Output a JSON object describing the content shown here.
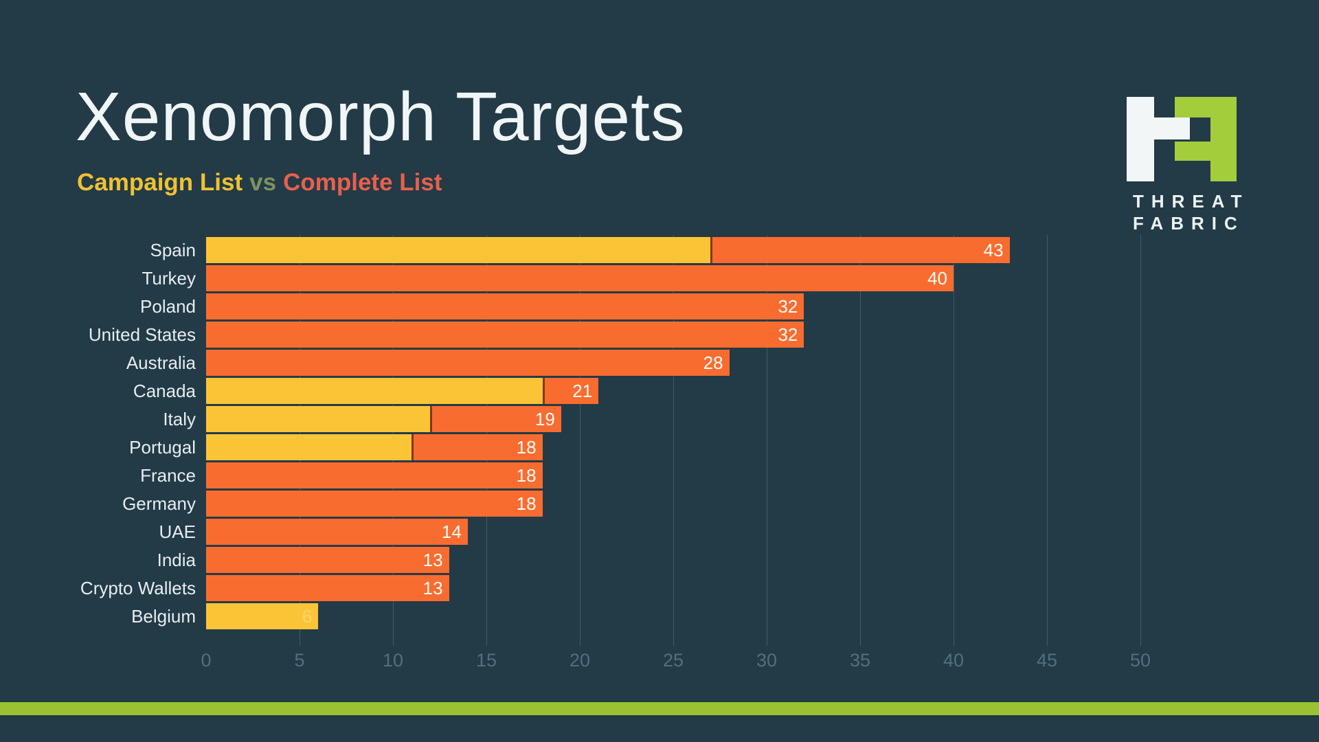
{
  "page": {
    "background_color": "#233A47",
    "accent_strip_color": "#9AC232"
  },
  "header": {
    "title": "Xenomorph Targets",
    "subtitle": {
      "campaign_label": "Campaign List",
      "vs_label": "vs",
      "complete_label": "Complete List",
      "campaign_color": "#EFC232",
      "vs_color": "#7E9160",
      "complete_color": "#E8604B"
    }
  },
  "logo": {
    "line1": "THREAT",
    "line2": "FABRIC",
    "mark_green": "#A3CD3B",
    "mark_white": "#F3F6F6"
  },
  "chart_data": {
    "type": "bar",
    "orientation": "horizontal",
    "title": "Xenomorph Targets",
    "subtitle": "Campaign List vs Complete List",
    "categories": [
      "Spain",
      "Turkey",
      "Poland",
      "United States",
      "Australia",
      "Canada",
      "Italy",
      "Portugal",
      "France",
      "Germany",
      "UAE",
      "India",
      "Crypto Wallets",
      "Belgium"
    ],
    "series": [
      {
        "name": "Campaign List",
        "color": "#FBC437",
        "values": [
          27,
          0,
          0,
          0,
          0,
          18,
          12,
          11,
          0,
          0,
          0,
          0,
          0,
          6
        ]
      },
      {
        "name": "Complete List",
        "color": "#F96C2F",
        "values": [
          43,
          40,
          32,
          32,
          28,
          21,
          19,
          18,
          18,
          18,
          14,
          13,
          13,
          6
        ]
      }
    ],
    "bar_value_labels": [
      "43",
      "40",
      "32",
      "32",
      "28",
      "21",
      "19",
      "18",
      "18",
      "18",
      "14",
      "13",
      "13",
      "6"
    ],
    "faint_label_categories": [
      "Belgium"
    ],
    "x_ticks": [
      0,
      5,
      10,
      15,
      20,
      25,
      30,
      35,
      40,
      45,
      50
    ],
    "xlim": [
      0,
      52.5
    ],
    "grid": "vertical-lines",
    "legend_position": "subtitle-inline",
    "value_label_color": "#FDFDFC",
    "axis_label_color": "#51707F"
  }
}
